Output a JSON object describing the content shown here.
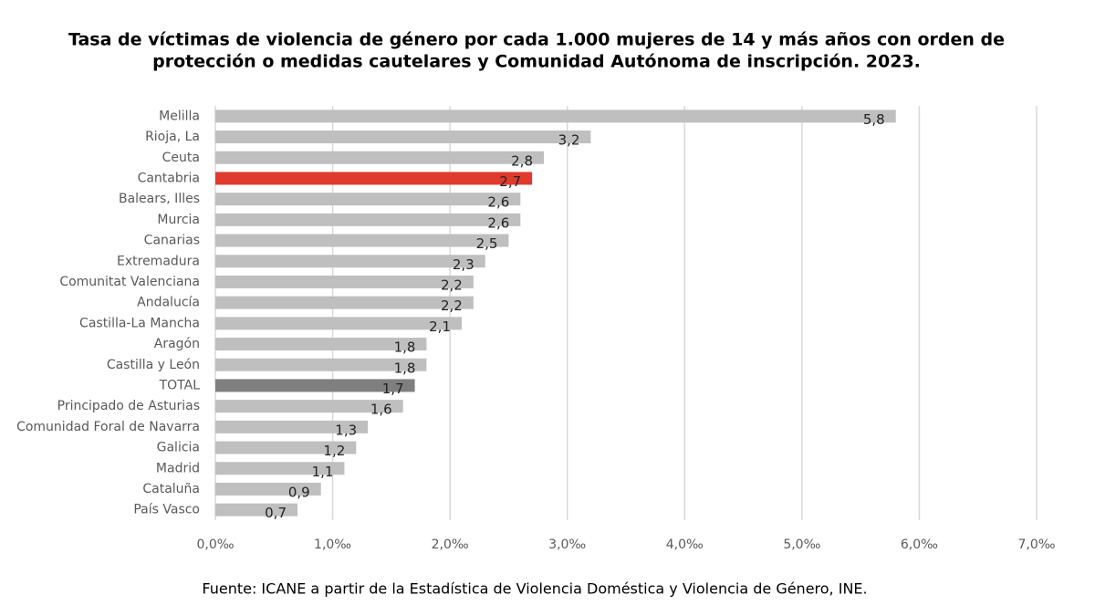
{
  "chart_data": {
    "type": "barh",
    "title": [
      "Tasa de víctimas de violencia de género por cada 1.000 mujeres de 14 y más años con orden de",
      "protección o medidas cautelares y Comunidad Autónoma de inscripción. 2023."
    ],
    "categories": [
      "Melilla",
      "Rioja, La",
      "Ceuta",
      "Cantabria",
      "Balears, Illes",
      "Murcia",
      "Canarias",
      "Extremadura",
      "Comunitat Valenciana",
      "Andalucía",
      "Castilla-La Mancha",
      "Aragón",
      "Castilla y León",
      "TOTAL",
      "Principado de  Asturias",
      "Comunidad Foral de Navarra",
      "Galicia",
      "Madrid",
      "Cataluña",
      "País Vasco"
    ],
    "values": [
      5.8,
      3.2,
      2.8,
      2.7,
      2.6,
      2.6,
      2.5,
      2.3,
      2.2,
      2.2,
      2.1,
      1.8,
      1.8,
      1.7,
      1.6,
      1.3,
      1.2,
      1.1,
      0.9,
      0.7
    ],
    "value_labels": [
      "5,8",
      "3,2",
      "2,8",
      "2,7",
      "2,6",
      "2,6",
      "2,5",
      "2,3",
      "2,2",
      "2,2",
      "2,1",
      "1,8",
      "1,8",
      "1,7",
      "1,6",
      "1,3",
      "1,2",
      "1,1",
      "0,9",
      "0,7"
    ],
    "colors": [
      "#bfbfbf",
      "#bfbfbf",
      "#bfbfbf",
      "#e03a2e",
      "#bfbfbf",
      "#bfbfbf",
      "#bfbfbf",
      "#bfbfbf",
      "#bfbfbf",
      "#bfbfbf",
      "#bfbfbf",
      "#bfbfbf",
      "#bfbfbf",
      "#7f7f7f",
      "#bfbfbf",
      "#bfbfbf",
      "#bfbfbf",
      "#bfbfbf",
      "#bfbfbf",
      "#bfbfbf"
    ],
    "xlim": [
      0,
      7
    ],
    "xticks": [
      {
        "value": 0,
        "label": "0,0‰"
      },
      {
        "value": 1,
        "label": "1,0‰"
      },
      {
        "value": 2,
        "label": "2,0‰"
      },
      {
        "value": 3,
        "label": "3,0‰"
      },
      {
        "value": 4,
        "label": "4,0‰"
      },
      {
        "value": 5,
        "label": "5,0‰"
      },
      {
        "value": 6,
        "label": "6,0‰"
      },
      {
        "value": 7,
        "label": "7,0‰"
      }
    ],
    "grid": true,
    "source": "Fuente: ICANE a partir de la Estadística de Violencia Doméstica y Violencia de Género, INE."
  }
}
